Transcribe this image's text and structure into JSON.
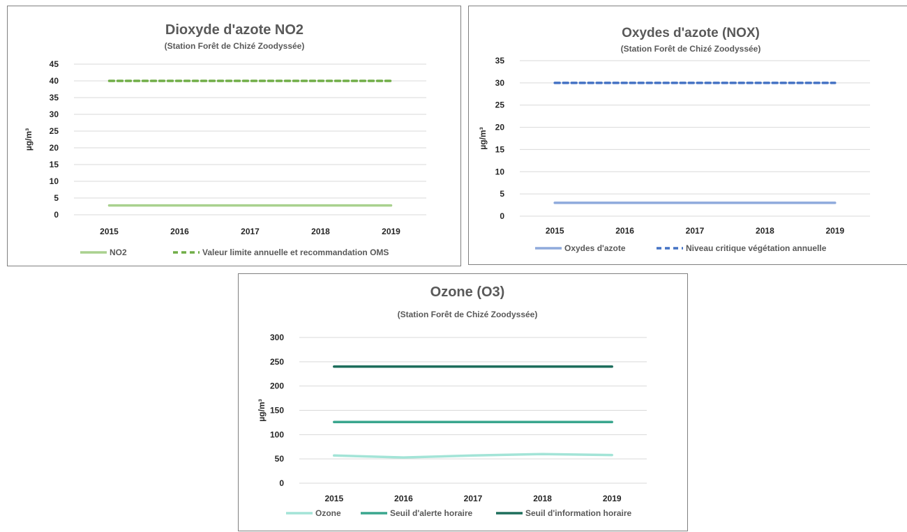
{
  "chart_data": [
    {
      "type": "line",
      "title": "Dioxyde d'azote NO2",
      "subtitle": "(Station Forêt de Chizé Zoodyssée)",
      "xlabel": "",
      "ylabel": "µg/m³",
      "categories": [
        "2015",
        "2016",
        "2017",
        "2018",
        "2019"
      ],
      "ylim": [
        0,
        45
      ],
      "yticks": [
        0,
        5,
        10,
        15,
        20,
        25,
        30,
        35,
        40,
        45
      ],
      "grid": true,
      "legend": "bottom",
      "series": [
        {
          "name": "NO2",
          "values": [
            2.8,
            2.8,
            2.8,
            2.8,
            2.8
          ],
          "color": "#a9d18e",
          "dash": false
        },
        {
          "name": "Valeur limite annuelle et recommandation OMS",
          "values": [
            40,
            40,
            40,
            40,
            40
          ],
          "color": "#70ad47",
          "dash": true
        }
      ]
    },
    {
      "type": "line",
      "title": "Oxydes d'azote (NOX)",
      "subtitle": "(Station Forêt de Chizé Zoodyssée)",
      "xlabel": "",
      "ylabel": "µg/m³",
      "categories": [
        "2015",
        "2016",
        "2017",
        "2018",
        "2019"
      ],
      "ylim": [
        0,
        35
      ],
      "yticks": [
        0,
        5,
        10,
        15,
        20,
        25,
        30,
        35
      ],
      "grid": true,
      "legend": "bottom",
      "series": [
        {
          "name": "Oxydes d'azote",
          "values": [
            3,
            3,
            3,
            3,
            3
          ],
          "color": "#8faadc",
          "dash": false
        },
        {
          "name": "Niveau critique végétation annuelle",
          "values": [
            30,
            30,
            30,
            30,
            30
          ],
          "color": "#4472c4",
          "dash": true
        }
      ]
    },
    {
      "type": "line",
      "title": "Ozone (O3)",
      "subtitle": "(Station Forêt de Chizé Zoodyssée)",
      "xlabel": "",
      "ylabel": "µg/m³",
      "categories": [
        "2015",
        "2016",
        "2017",
        "2018",
        "2019"
      ],
      "ylim": [
        0,
        300
      ],
      "yticks": [
        0,
        50,
        100,
        150,
        200,
        250,
        300
      ],
      "grid": true,
      "legend": "bottom",
      "series": [
        {
          "name": "Ozone",
          "values": [
            57,
            53,
            57,
            60,
            58
          ],
          "color": "#a3e4d7",
          "dash": false
        },
        {
          "name": "Seuil d'alerte horaire",
          "values": [
            126,
            126,
            126,
            126,
            126
          ],
          "color": "#3aa68e",
          "dash": false
        },
        {
          "name": "Seuil d'information horaire",
          "values": [
            240,
            240,
            240,
            240,
            240
          ],
          "color": "#1e6e5c",
          "dash": false
        }
      ]
    }
  ]
}
